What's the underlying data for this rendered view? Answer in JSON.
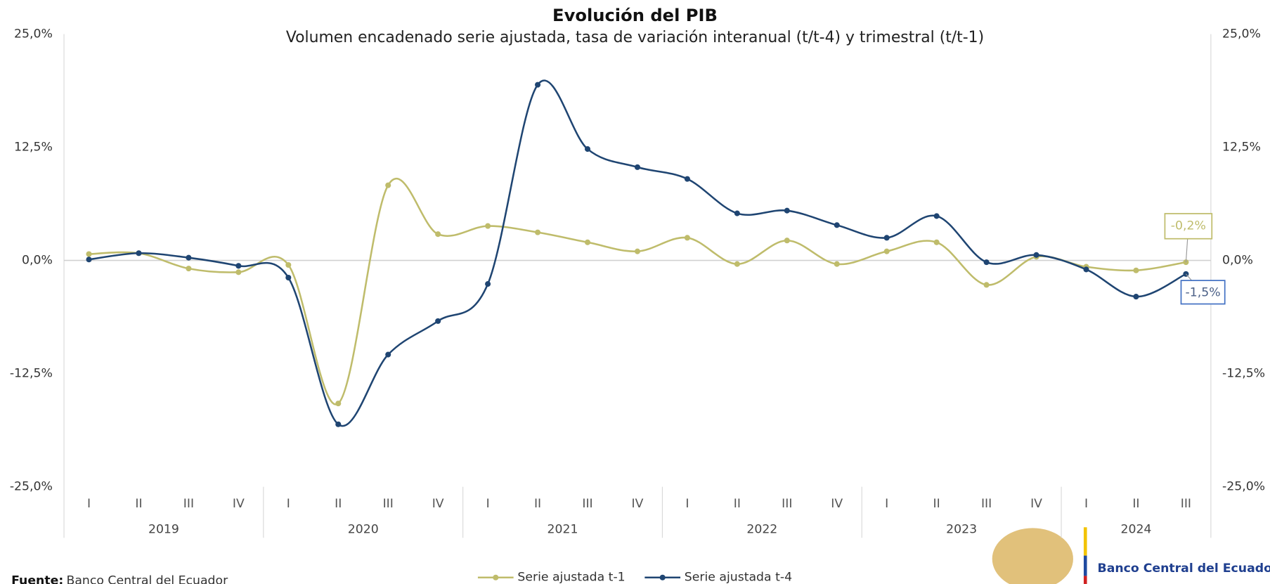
{
  "chart_data": {
    "type": "line",
    "title": "Evolución del PIB",
    "subtitle": "Volumen encadenado serie ajustada, tasa de variación interanual (t/t-4) y trimestral (t/t-1)",
    "categories": [
      "I",
      "II",
      "III",
      "IV",
      "I",
      "II",
      "III",
      "IV",
      "I",
      "II",
      "III",
      "IV",
      "I",
      "II",
      "III",
      "IV",
      "I",
      "II",
      "III",
      "IV",
      "I",
      "II",
      "III"
    ],
    "category_groups": [
      "2019",
      "2020",
      "2021",
      "2022",
      "2023",
      "2024"
    ],
    "ylim": [
      -25,
      25
    ],
    "yticks": [
      {
        "value": -25,
        "label": "-25,0%"
      },
      {
        "value": -12.5,
        "label": "-12,5%"
      },
      {
        "value": 0,
        "label": "0,0%"
      },
      {
        "value": 12.5,
        "label": "12,5%"
      },
      {
        "value": 25,
        "label": "25,0%"
      }
    ],
    "series": [
      {
        "name": "Serie ajustada t-1",
        "color": "#bfbc6b",
        "values": [
          0.7,
          0.8,
          -0.9,
          -1.3,
          -0.5,
          -15.8,
          8.3,
          2.9,
          3.8,
          3.1,
          2.0,
          1.0,
          2.5,
          -0.4,
          2.2,
          -0.4,
          1.0,
          2.0,
          -2.7,
          0.4,
          -0.7,
          -1.1,
          -0.2
        ],
        "value_labels": [
          null,
          null,
          null,
          null,
          null,
          null,
          null,
          null,
          null,
          null,
          null,
          null,
          null,
          null,
          null,
          null,
          null,
          null,
          null,
          null,
          null,
          null,
          "-0,2%"
        ]
      },
      {
        "name": "Serie ajustada t-4",
        "color": "#1f4572",
        "values": [
          0.1,
          0.8,
          0.3,
          -0.6,
          -1.9,
          -18.1,
          -10.4,
          -6.7,
          -2.6,
          19.4,
          12.3,
          10.3,
          9.0,
          5.2,
          5.5,
          3.9,
          2.5,
          4.9,
          -0.2,
          0.6,
          -1.0,
          -4.0,
          -1.5
        ],
        "value_labels": [
          null,
          null,
          null,
          null,
          null,
          null,
          null,
          null,
          null,
          null,
          null,
          null,
          null,
          null,
          null,
          null,
          null,
          null,
          null,
          null,
          null,
          null,
          "-1,5%"
        ]
      }
    ],
    "source_label": "Fuente:",
    "source": "Banco Central del Ecuador",
    "logo_text": "Banco Central del Ecuador"
  }
}
